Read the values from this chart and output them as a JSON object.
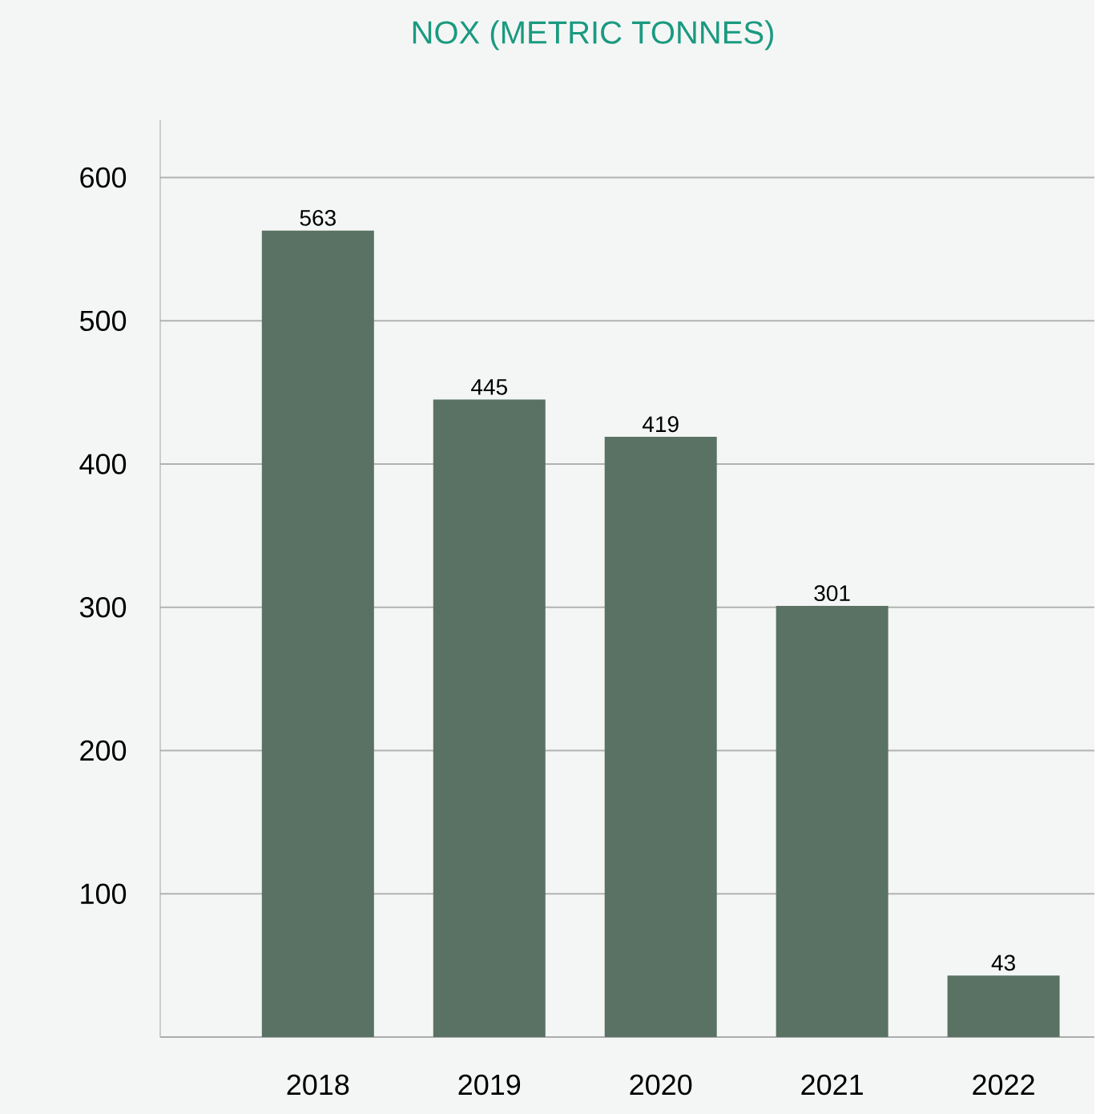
{
  "chart_data": {
    "type": "bar",
    "title": "NOX (METRIC TONNES)",
    "categories": [
      "2018",
      "2019",
      "2020",
      "2021",
      "2022"
    ],
    "values": [
      563,
      445,
      419,
      301,
      43
    ],
    "color": "#5a7263",
    "ylim": [
      0,
      640
    ],
    "yticks": [
      {
        "value": 0,
        "label": null
      },
      100,
      200,
      300,
      400,
      500,
      600
    ],
    "grid": "y",
    "data_labels": true
  }
}
